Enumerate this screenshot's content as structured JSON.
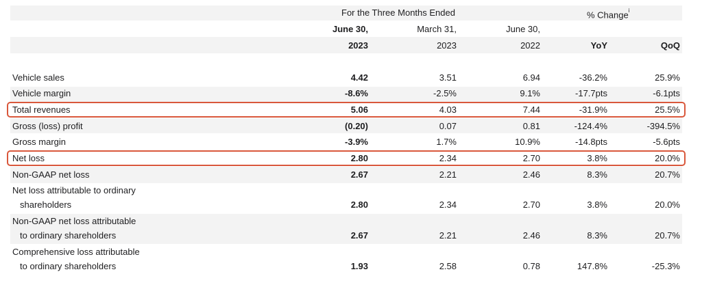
{
  "header": {
    "period_title": "For the Three Months Ended",
    "change_title": "% Change",
    "change_note": "i",
    "col_dates": [
      "June 30,",
      "March 31,",
      "June 30,"
    ],
    "col_years": [
      "2023",
      "2023",
      "2022"
    ],
    "col_yoy": "YoY",
    "col_qoq": "QoQ"
  },
  "rows": [
    {
      "label": "Vehicle sales",
      "jun23": "4.42",
      "mar23": "3.51",
      "jun22": "6.94",
      "yoy": "-36.2%",
      "qoq": "25.9%"
    },
    {
      "label": "Vehicle margin",
      "jun23": "-8.6%",
      "mar23": "-2.5%",
      "jun22": "9.1%",
      "yoy": "-17.7pts",
      "qoq": "-6.1pts"
    },
    {
      "label": "Total revenues",
      "jun23": "5.06",
      "mar23": "4.03",
      "jun22": "7.44",
      "yoy": "-31.9%",
      "qoq": "25.5%"
    },
    {
      "label": "Gross (loss) profit",
      "jun23": "(0.20)",
      "mar23": "0.07",
      "jun22": "0.81",
      "yoy": "-124.4%",
      "qoq": "-394.5%"
    },
    {
      "label": "Gross margin",
      "jun23": "-3.9%",
      "mar23": "1.7%",
      "jun22": "10.9%",
      "yoy": "-14.8pts",
      "qoq": "-5.6pts"
    },
    {
      "label": "Net loss",
      "jun23": "2.80",
      "mar23": "2.34",
      "jun22": "2.70",
      "yoy": "3.8%",
      "qoq": "20.0%"
    },
    {
      "label": "Non-GAAP net loss",
      "jun23": "2.67",
      "mar23": "2.21",
      "jun22": "2.46",
      "yoy": "8.3%",
      "qoq": "20.7%"
    },
    {
      "label1": "Net loss attributable to ordinary",
      "label2": "shareholders",
      "jun23": "2.80",
      "mar23": "2.34",
      "jun22": "2.70",
      "yoy": "3.8%",
      "qoq": "20.0%"
    },
    {
      "label1": "Non-GAAP net loss attributable",
      "label2": "to ordinary shareholders",
      "jun23": "2.67",
      "mar23": "2.21",
      "jun22": "2.46",
      "yoy": "8.3%",
      "qoq": "20.7%"
    },
    {
      "label1": "Comprehensive loss attributable",
      "label2": "to ordinary shareholders",
      "jun23": "1.93",
      "mar23": "2.58",
      "jun22": "0.78",
      "yoy": "147.8%",
      "qoq": "-25.3%"
    }
  ],
  "colors": {
    "highlight_border": "#d9573b",
    "band": "#f3f3f3"
  }
}
